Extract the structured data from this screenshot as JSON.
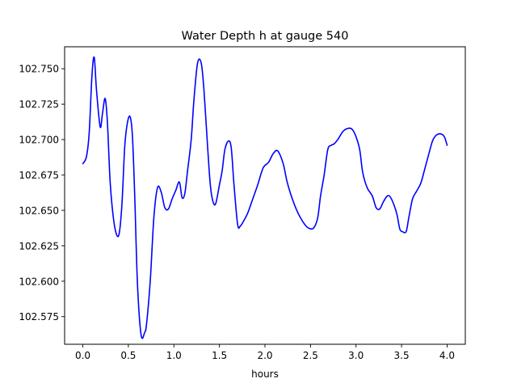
{
  "chart_data": {
    "type": "line",
    "title": "Water Depth h at gauge 540",
    "xlabel": "hours",
    "ylabel": "",
    "xlim": [
      -0.2,
      4.2
    ],
    "ylim": [
      102.5555,
      102.7655
    ],
    "xticks": [
      0.0,
      0.5,
      1.0,
      1.5,
      2.0,
      2.5,
      3.0,
      3.5,
      4.0
    ],
    "xtick_labels": [
      "0.0",
      "0.5",
      "1.0",
      "1.5",
      "2.0",
      "2.5",
      "3.0",
      "3.5",
      "4.0"
    ],
    "yticks": [
      102.575,
      102.6,
      102.625,
      102.65,
      102.675,
      102.7,
      102.725,
      102.75
    ],
    "ytick_labels": [
      "102.575",
      "102.600",
      "102.625",
      "102.650",
      "102.675",
      "102.700",
      "102.725",
      "102.750"
    ],
    "grid": false,
    "series": [
      {
        "color": "#0000ff",
        "x": [
          0.0,
          0.04,
          0.07,
          0.1,
          0.125,
          0.15,
          0.19,
          0.215,
          0.245,
          0.27,
          0.3,
          0.335,
          0.37,
          0.4,
          0.43,
          0.46,
          0.49,
          0.52,
          0.545,
          0.57,
          0.6,
          0.64,
          0.68,
          0.7,
          0.74,
          0.78,
          0.82,
          0.86,
          0.9,
          0.94,
          0.98,
          1.02,
          1.06,
          1.09,
          1.12,
          1.15,
          1.19,
          1.22,
          1.26,
          1.3,
          1.33,
          1.37,
          1.4,
          1.43,
          1.46,
          1.5,
          1.53,
          1.56,
          1.6,
          1.63,
          1.66,
          1.7,
          1.73,
          1.77,
          1.81,
          1.86,
          1.92,
          1.98,
          2.04,
          2.09,
          2.14,
          2.2,
          2.24,
          2.28,
          2.33,
          2.38,
          2.45,
          2.5,
          2.54,
          2.58,
          2.61,
          2.65,
          2.69,
          2.73,
          2.76,
          2.8,
          2.86,
          2.92,
          2.96,
          3.0,
          3.04,
          3.07,
          3.1,
          3.13,
          3.18,
          3.22,
          3.26,
          3.3,
          3.34,
          3.37,
          3.41,
          3.45,
          3.48,
          3.51,
          3.55,
          3.58,
          3.62,
          3.66,
          3.71,
          3.75,
          3.8,
          3.84,
          3.88,
          3.93,
          3.97,
          4.0
        ],
        "y": [
          102.683,
          102.688,
          102.705,
          102.745,
          102.758,
          102.735,
          102.709,
          102.718,
          102.729,
          102.712,
          102.67,
          102.645,
          102.633,
          102.634,
          102.655,
          102.695,
          102.712,
          102.716,
          102.702,
          102.66,
          102.598,
          102.562,
          102.564,
          102.57,
          102.6,
          102.645,
          102.666,
          102.663,
          102.652,
          102.651,
          102.658,
          102.664,
          102.67,
          102.659,
          102.662,
          102.678,
          102.7,
          102.728,
          102.754,
          102.754,
          102.735,
          102.695,
          102.668,
          102.656,
          102.655,
          102.668,
          102.678,
          102.693,
          102.699,
          102.694,
          102.668,
          102.64,
          102.639,
          102.643,
          102.648,
          102.657,
          102.668,
          102.68,
          102.684,
          102.69,
          102.692,
          102.683,
          102.671,
          102.662,
          102.653,
          102.646,
          102.639,
          102.637,
          102.638,
          102.645,
          102.66,
          102.675,
          102.693,
          102.696,
          102.697,
          102.7,
          102.706,
          102.708,
          102.707,
          102.702,
          102.693,
          102.678,
          102.67,
          102.665,
          102.66,
          102.652,
          102.651,
          102.656,
          102.66,
          102.66,
          102.655,
          102.647,
          102.637,
          102.635,
          102.635,
          102.645,
          102.658,
          102.663,
          102.669,
          102.678,
          102.69,
          102.699,
          102.703,
          102.704,
          102.702,
          102.696
        ]
      }
    ]
  }
}
